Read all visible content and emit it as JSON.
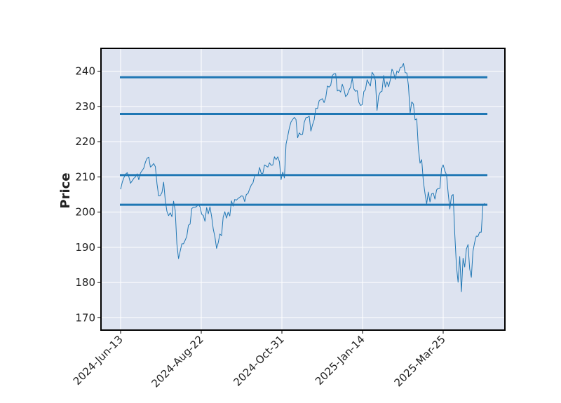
{
  "chart_data": {
    "type": "line",
    "title": "",
    "xlabel": "",
    "ylabel": "Price",
    "ylim": [
      166.5,
      246.5
    ],
    "y_ticks": [
      170,
      180,
      190,
      200,
      210,
      220,
      230,
      240
    ],
    "x_tick_labels": [
      "2024-Jun-13",
      "2024-Aug-22",
      "2024-Oct-31",
      "2025-Jan-14",
      "2025-Mar-25"
    ],
    "grid": true,
    "colors": {
      "background": "#dde3f0",
      "grid": "#ffffff",
      "line": "#1f77b4",
      "frame": "#000000"
    },
    "horizontal_levels": [
      238.3,
      227.9,
      210.5,
      202.1
    ],
    "series": [
      {
        "values": [
          206.5,
          208.5,
          209.8,
          210.8,
          211.2,
          210.0,
          208.2,
          208.9,
          209.6,
          210.0,
          210.9,
          209.2,
          211.1,
          211.8,
          212.5,
          214.2,
          215.3,
          215.6,
          212.8,
          213.2,
          213.8,
          212.9,
          208.0,
          204.6,
          204.7,
          205.6,
          208.5,
          203.3,
          200.2,
          199.0,
          199.8,
          198.7,
          203.1,
          200.5,
          191.0,
          186.8,
          188.9,
          191.0,
          191.0,
          192.0,
          193.1,
          196.3,
          196.6,
          201.0,
          201.4,
          201.4,
          201.6,
          202.2,
          201.5,
          199.4,
          199.0,
          197.4,
          201.3,
          199.5,
          201.5,
          198.8,
          195.2,
          193.0,
          189.7,
          191.3,
          193.8,
          193.3,
          198.6,
          200.1,
          198.3,
          200.0,
          198.9,
          203.2,
          201.7,
          203.6,
          203.4,
          203.9,
          204.2,
          204.6,
          204.5,
          203.0,
          205.0,
          205.3,
          206.6,
          207.7,
          208.3,
          210.3,
          210.7,
          210.4,
          212.7,
          211.0,
          211.0,
          213.4,
          213.1,
          212.8,
          214.0,
          213.3,
          213.4,
          215.7,
          214.9,
          215.7,
          214.3,
          209.2,
          211.4,
          209.7,
          219.3,
          221.5,
          223.9,
          225.6,
          226.3,
          226.9,
          226.3,
          221.1,
          222.5,
          222.0,
          222.1,
          225.5,
          226.8,
          226.9,
          227.3,
          223.0,
          224.8,
          226.2,
          229.5,
          229.4,
          231.6,
          232.0,
          232.2,
          231.1,
          232.5,
          235.8,
          235.5,
          236.0,
          238.8,
          239.3,
          239.3,
          234.4,
          234.7,
          234.1,
          236.3,
          234.9,
          232.8,
          233.3,
          234.6,
          235.5,
          238.0,
          235.0,
          234.3,
          234.5,
          231.2,
          230.3,
          230.5,
          234.2,
          234.8,
          237.6,
          236.6,
          235.8,
          239.7,
          239.0,
          237.4,
          228.9,
          233.0,
          234.1,
          234.3,
          238.8,
          235.5,
          237.0,
          235.6,
          237.5,
          240.6,
          239.7,
          237.7,
          240.1,
          239.6,
          241.0,
          241.2,
          242.2,
          239.6,
          239.5,
          235.9,
          228.1,
          231.3,
          230.7,
          226.2,
          226.5,
          218.0,
          213.9,
          214.9,
          208.7,
          205.3,
          202.3,
          205.7,
          202.9,
          205.2,
          205.4,
          203.7,
          206.3,
          206.8,
          206.8,
          212.4,
          213.4,
          211.7,
          210.6,
          205.4,
          200.9,
          204.6,
          205.0,
          193.7,
          184.7,
          180.1,
          187.4,
          177.4,
          186.9,
          184.4,
          189.5,
          190.8,
          183.9,
          181.5,
          188.9,
          191.4,
          193.2,
          193.1,
          194.3,
          194.3,
          201.9,
          202.5
        ]
      }
    ]
  }
}
